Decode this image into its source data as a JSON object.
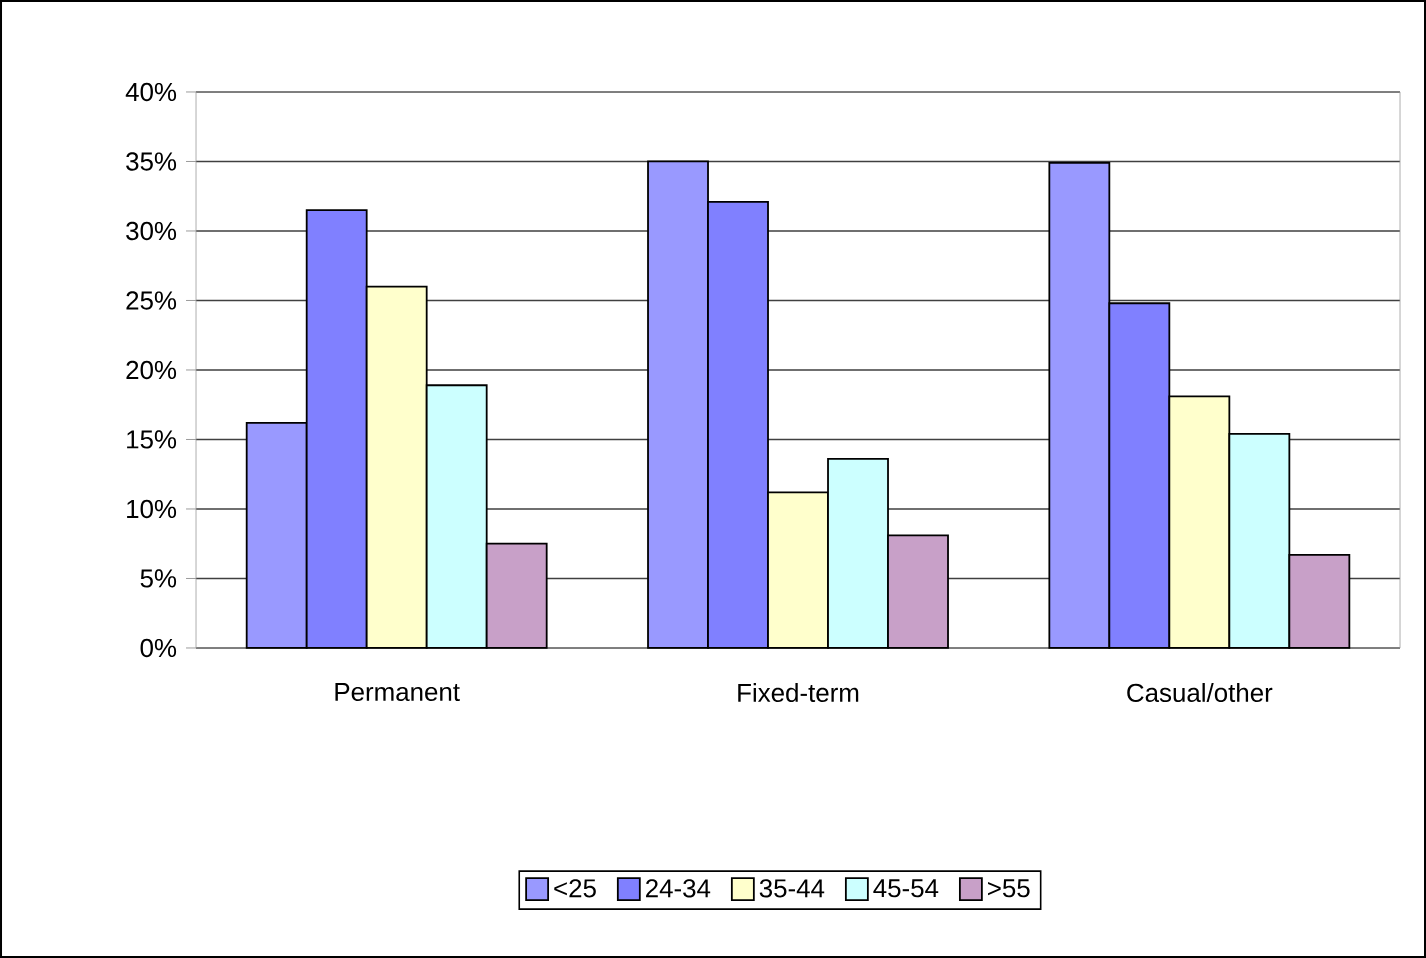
{
  "chart_data": {
    "type": "bar",
    "categories": [
      "Permanent",
      "Fixed-term",
      "Casual/other"
    ],
    "series": [
      {
        "name": "<25",
        "color": "#9999ff",
        "values": [
          16.2,
          35.0,
          34.9
        ]
      },
      {
        "name": "24-34",
        "color": "#8080ff",
        "values": [
          31.5,
          32.1,
          24.8
        ]
      },
      {
        "name": "35-44",
        "color": "#ffffcc",
        "values": [
          26.0,
          11.2,
          18.1
        ]
      },
      {
        "name": "45-54",
        "color": "#ccffff",
        "values": [
          18.9,
          13.6,
          15.4
        ]
      },
      {
        "name": ">55",
        "color": "#c8a0c8",
        "values": [
          7.5,
          8.1,
          6.7
        ]
      }
    ],
    "ylim": [
      0,
      40
    ],
    "yticks": [
      {
        "value": 0,
        "label": "0%"
      },
      {
        "value": 5,
        "label": "5%"
      },
      {
        "value": 10,
        "label": "10%"
      },
      {
        "value": 15,
        "label": "15%"
      },
      {
        "value": 20,
        "label": "20%"
      },
      {
        "value": 25,
        "label": "25%"
      },
      {
        "value": 30,
        "label": "30%"
      },
      {
        "value": 35,
        "label": "35%"
      },
      {
        "value": 40,
        "label": "40%"
      }
    ],
    "grid": "y",
    "legend": "bottom"
  }
}
